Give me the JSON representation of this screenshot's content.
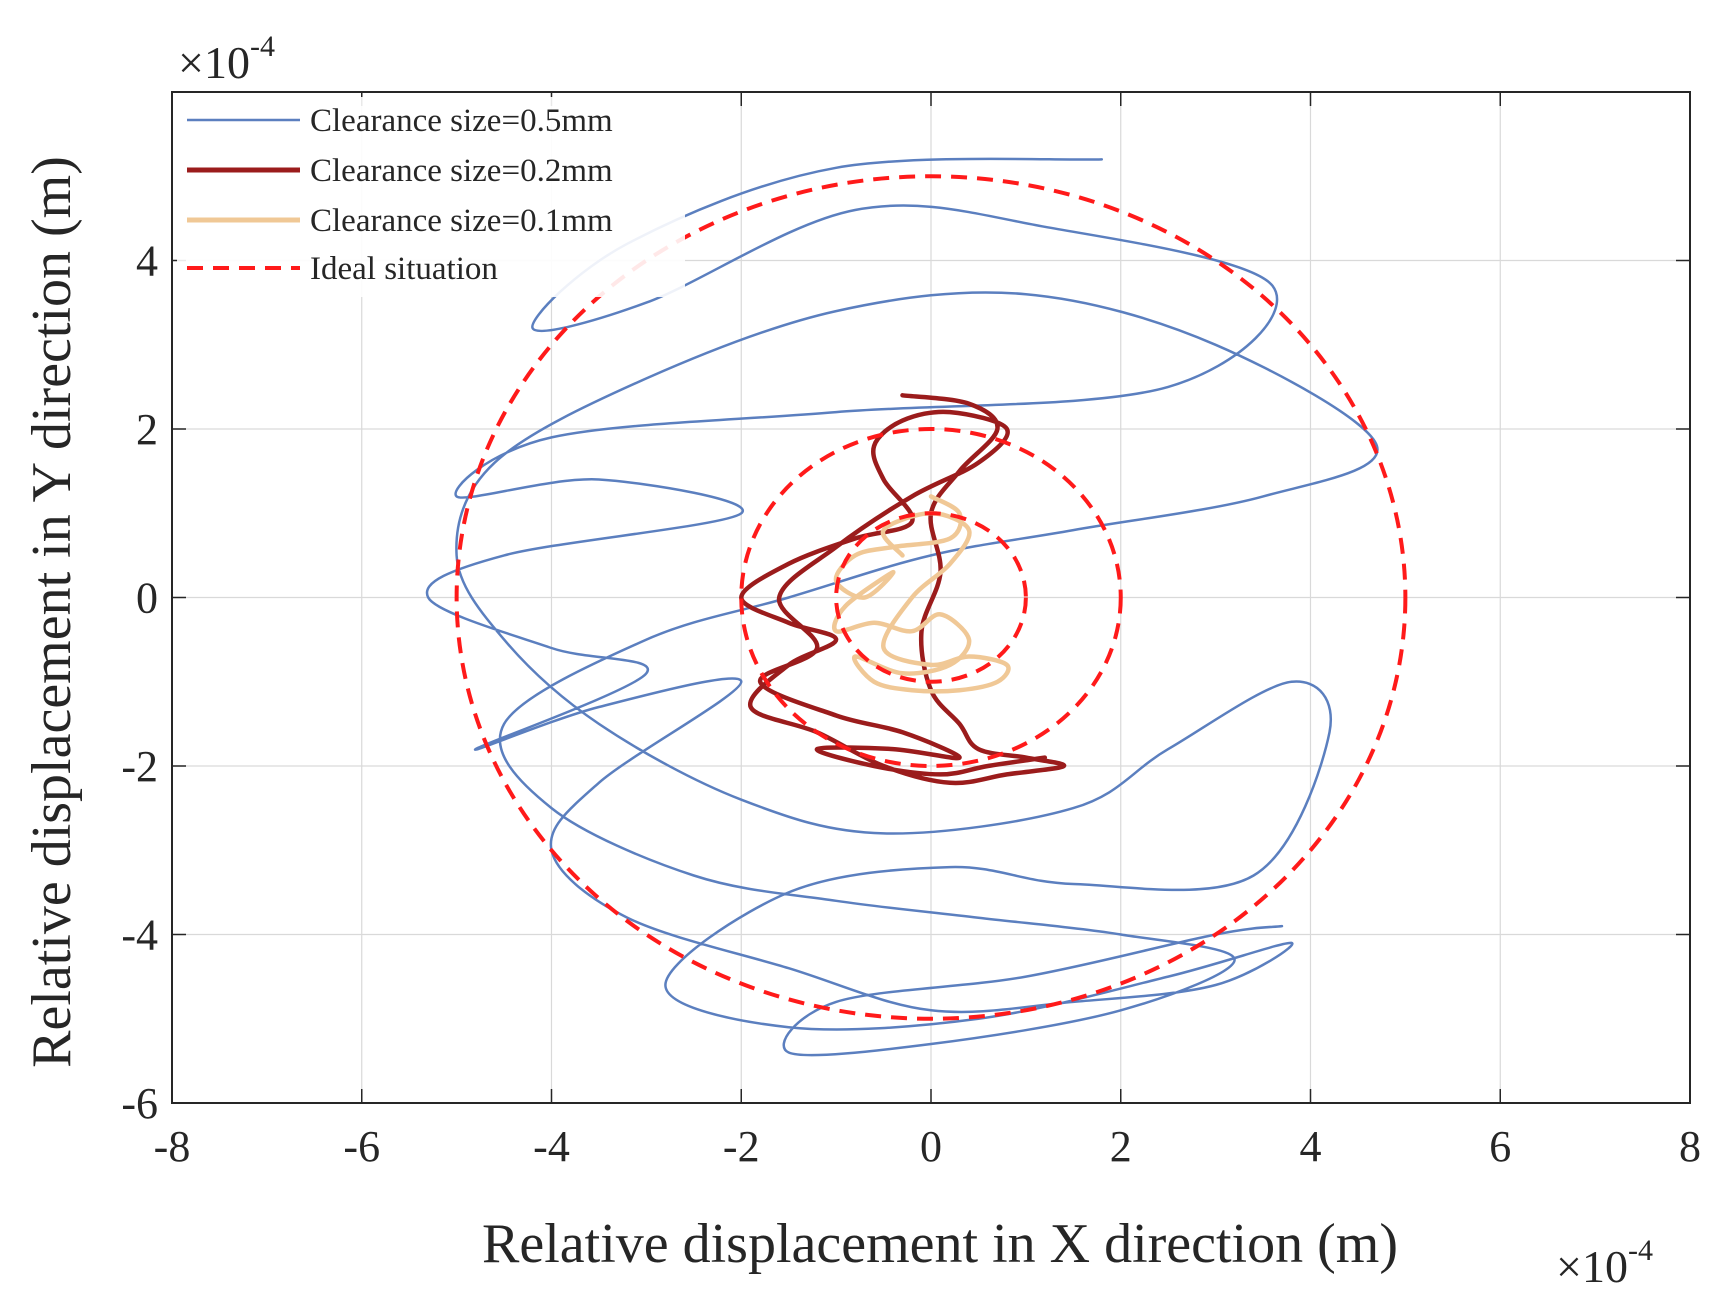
{
  "chart_data": {
    "type": "line",
    "title": "",
    "xlabel": "Relative displacement in X direction (m)",
    "ylabel": "Relative displacement in Y direction (m)",
    "xlim": [
      -8,
      8
    ],
    "ylim": [
      -6,
      6
    ],
    "x_ticks": [
      -8,
      -6,
      -4,
      -2,
      0,
      2,
      4,
      6,
      8
    ],
    "y_ticks": [
      -6,
      -4,
      -2,
      0,
      2,
      4
    ],
    "x_multiplier": {
      "base": "×10",
      "exp": "-4"
    },
    "y_multiplier": {
      "base": "×10",
      "exp": "-4"
    },
    "grid": true,
    "legend_position": "top-left",
    "series": [
      {
        "name": "Clearance size=0.5mm",
        "style": "solid",
        "color": "#5b7fbf",
        "radius": 5,
        "points": [
          [
            1.8,
            5.2
          ],
          [
            -1.0,
            5.1
          ],
          [
            -3.2,
            4.2
          ],
          [
            -4.2,
            3.2
          ],
          [
            -3.0,
            3.5
          ],
          [
            -0.8,
            4.6
          ],
          [
            1.2,
            4.4
          ],
          [
            3.6,
            3.7
          ],
          [
            2.5,
            2.5
          ],
          [
            -1.0,
            2.2
          ],
          [
            -4.0,
            1.9
          ],
          [
            -5.0,
            1.2
          ],
          [
            -3.5,
            1.4
          ],
          [
            -2.0,
            1.0
          ],
          [
            -4.5,
            0.5
          ],
          [
            -5.3,
            0.0
          ],
          [
            -4.0,
            -0.6
          ],
          [
            -3.0,
            -0.9
          ],
          [
            -4.8,
            -1.8
          ],
          [
            -3.5,
            -1.3
          ],
          [
            -2.0,
            -1.0
          ],
          [
            -3.5,
            -2.2
          ],
          [
            -4.0,
            -3.0
          ],
          [
            -3.2,
            -3.8
          ],
          [
            -1.5,
            -4.4
          ],
          [
            0.0,
            -4.9
          ],
          [
            1.5,
            -4.8
          ],
          [
            3.0,
            -4.6
          ],
          [
            3.8,
            -4.1
          ],
          [
            2.5,
            -4.5
          ],
          [
            0.5,
            -5.0
          ],
          [
            -1.5,
            -5.1
          ],
          [
            -2.8,
            -4.6
          ],
          [
            -1.5,
            -3.5
          ],
          [
            0.2,
            -3.2
          ],
          [
            1.5,
            -3.4
          ],
          [
            3.4,
            -3.3
          ],
          [
            4.2,
            -1.6
          ],
          [
            3.8,
            -1.0
          ],
          [
            2.5,
            -1.8
          ],
          [
            1.5,
            -2.5
          ],
          [
            -0.5,
            -2.8
          ],
          [
            -2.0,
            -2.4
          ],
          [
            -3.5,
            -1.5
          ],
          [
            -4.5,
            -0.5
          ],
          [
            -5.0,
            0.5
          ],
          [
            -4.6,
            1.6
          ],
          [
            -3.0,
            2.6
          ],
          [
            -1.0,
            3.4
          ],
          [
            1.0,
            3.6
          ],
          [
            3.0,
            3.0
          ],
          [
            4.7,
            1.8
          ],
          [
            3.5,
            1.2
          ],
          [
            1.5,
            0.8
          ],
          [
            0.0,
            0.5
          ],
          [
            -1.5,
            0.0
          ],
          [
            -3.0,
            -0.5
          ],
          [
            -4.5,
            -1.5
          ],
          [
            -4.0,
            -2.5
          ],
          [
            -2.5,
            -3.3
          ],
          [
            -1.0,
            -3.6
          ],
          [
            0.5,
            -3.8
          ],
          [
            2.0,
            -4.0
          ],
          [
            3.2,
            -4.3
          ],
          [
            2.0,
            -4.9
          ],
          [
            0.0,
            -5.3
          ],
          [
            -1.5,
            -5.4
          ],
          [
            -1.0,
            -4.8
          ],
          [
            1.0,
            -4.5
          ],
          [
            3.0,
            -4.0
          ],
          [
            3.7,
            -3.9
          ]
        ]
      },
      {
        "name": "Clearance size=0.2mm",
        "style": "solid",
        "color": "#9b1c1c",
        "radius": 2,
        "points": [
          [
            -0.3,
            2.4
          ],
          [
            0.4,
            2.3
          ],
          [
            0.7,
            2.0
          ],
          [
            0.3,
            1.5
          ],
          [
            0.0,
            1.0
          ],
          [
            0.1,
            0.3
          ],
          [
            -0.1,
            -0.4
          ],
          [
            0.0,
            -1.1
          ],
          [
            0.3,
            -1.5
          ],
          [
            0.5,
            -1.8
          ],
          [
            1.0,
            -1.9
          ],
          [
            1.4,
            -2.0
          ],
          [
            0.8,
            -2.1
          ],
          [
            0.2,
            -2.2
          ],
          [
            -0.5,
            -2.0
          ],
          [
            -1.2,
            -1.6
          ],
          [
            -1.9,
            -1.3
          ],
          [
            -1.5,
            -0.8
          ],
          [
            -1.0,
            -0.5
          ],
          [
            -1.5,
            -0.3
          ],
          [
            -2.0,
            0.0
          ],
          [
            -1.5,
            0.4
          ],
          [
            -0.8,
            0.7
          ],
          [
            -0.2,
            0.9
          ],
          [
            -0.5,
            1.4
          ],
          [
            -0.6,
            1.8
          ],
          [
            -0.3,
            2.1
          ],
          [
            0.2,
            2.2
          ],
          [
            0.8,
            2.0
          ],
          [
            0.5,
            1.6
          ],
          [
            -0.2,
            1.2
          ],
          [
            -1.0,
            0.6
          ],
          [
            -1.6,
            0.0
          ],
          [
            -1.2,
            -0.6
          ],
          [
            -1.8,
            -1.0
          ],
          [
            -1.0,
            -1.4
          ],
          [
            -0.3,
            -1.6
          ],
          [
            0.3,
            -1.9
          ],
          [
            -0.4,
            -1.8
          ],
          [
            -1.2,
            -1.8
          ],
          [
            -0.6,
            -2.0
          ],
          [
            0.1,
            -2.1
          ],
          [
            0.6,
            -2.0
          ],
          [
            1.2,
            -1.9
          ]
        ]
      },
      {
        "name": "Clearance size=0.1mm",
        "style": "solid",
        "color": "#f0c896",
        "radius": 1,
        "points": [
          [
            0.0,
            1.2
          ],
          [
            0.3,
            1.0
          ],
          [
            0.2,
            0.7
          ],
          [
            -0.4,
            0.6
          ],
          [
            -0.8,
            0.5
          ],
          [
            -1.0,
            0.2
          ],
          [
            -0.7,
            0.0
          ],
          [
            -0.4,
            0.3
          ],
          [
            -0.9,
            -0.1
          ],
          [
            -1.0,
            -0.4
          ],
          [
            -0.6,
            -0.3
          ],
          [
            -0.2,
            -0.4
          ],
          [
            0.1,
            -0.2
          ],
          [
            0.4,
            -0.5
          ],
          [
            0.2,
            -0.8
          ],
          [
            -0.3,
            -0.9
          ],
          [
            -0.8,
            -0.7
          ],
          [
            -0.6,
            -1.0
          ],
          [
            -0.2,
            -1.1
          ],
          [
            0.3,
            -1.1
          ],
          [
            0.7,
            -1.0
          ],
          [
            0.8,
            -0.8
          ],
          [
            0.4,
            -0.7
          ],
          [
            0.0,
            -0.8
          ],
          [
            -0.5,
            -0.6
          ],
          [
            -0.2,
            0.0
          ],
          [
            0.2,
            0.4
          ],
          [
            0.4,
            0.8
          ],
          [
            0.0,
            1.0
          ],
          [
            -0.5,
            0.8
          ],
          [
            -0.3,
            0.5
          ]
        ]
      },
      {
        "name": "Ideal situation",
        "style": "dashed",
        "color": "#ff1a1a",
        "circle_radii": [
          5,
          2,
          1
        ]
      }
    ]
  }
}
